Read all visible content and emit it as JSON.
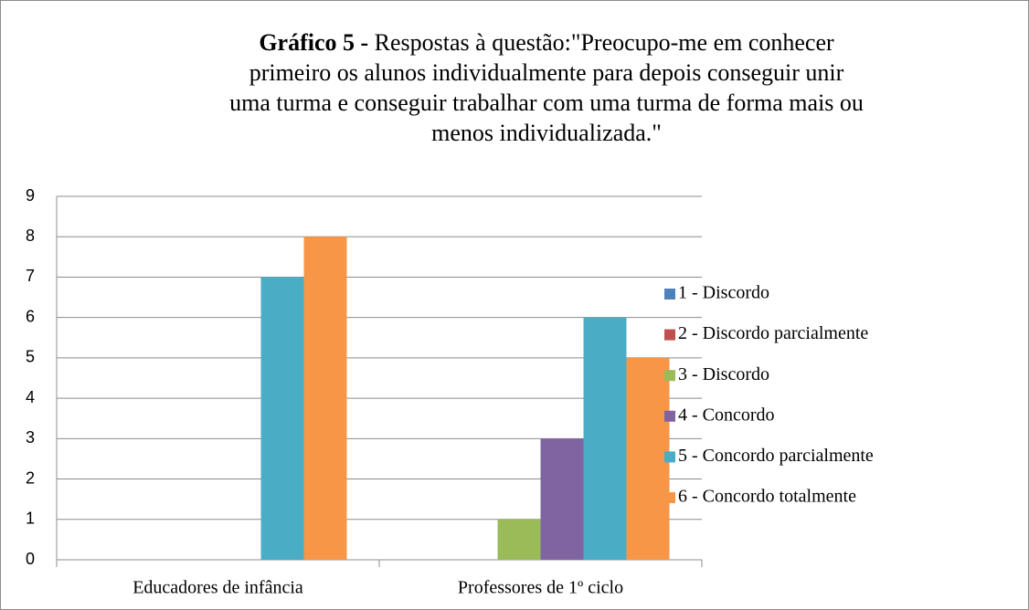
{
  "chart_data": {
    "type": "bar",
    "title_label": "Gráfico 5 -",
    "title": "Respostas à questão:\"Preocupo-me em conhecer primeiro os alunos individualmente para depois conseguir unir uma turma e conseguir trabalhar com uma turma de forma mais ou menos individualizada.\"",
    "categories": [
      "Educadores de infância",
      "Professores de 1º ciclo"
    ],
    "series": [
      {
        "name": "1 - Discordo",
        "color": "#4f81bd",
        "values": [
          0,
          0
        ]
      },
      {
        "name": "2 - Discordo parcialmente",
        "color": "#c0504d",
        "values": [
          0,
          0
        ]
      },
      {
        "name": "3 - Discordo",
        "color": "#9bbb59",
        "values": [
          0,
          1
        ]
      },
      {
        "name": "4 - Concordo",
        "color": "#8064a2",
        "values": [
          0,
          3
        ]
      },
      {
        "name": "5 - Concordo parcialmente",
        "color": "#4bacc6",
        "values": [
          7,
          6
        ]
      },
      {
        "name": "6 - Concordo totalmente",
        "color": "#f79646",
        "values": [
          8,
          5
        ]
      }
    ],
    "ylim": [
      0,
      9
    ],
    "yticks": [
      0,
      1,
      2,
      3,
      4,
      5,
      6,
      7,
      8,
      9
    ],
    "grid": true,
    "legend": "right"
  }
}
